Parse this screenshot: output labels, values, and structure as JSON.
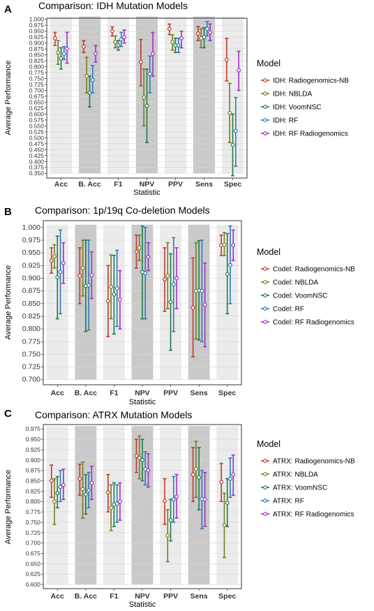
{
  "figure": {
    "panels": [
      "A",
      "B",
      "C"
    ]
  },
  "chart_data": [
    {
      "type": "errorbar",
      "panel_label": "A",
      "title": "Comparison: IDH Mutation Models",
      "xlabel": "Statistic",
      "ylabel": "Average Performance",
      "categories": [
        "Acc",
        "B. Acc",
        "F1",
        "NPV",
        "PPV",
        "Sens",
        "Spec"
      ],
      "shaded_dark": [
        "B. Acc",
        "NPV",
        "Sens"
      ],
      "ylim": [
        0.33,
        1.005
      ],
      "yticks": [
        0.35,
        0.375,
        0.4,
        0.425,
        0.45,
        0.475,
        0.5,
        0.525,
        0.55,
        0.575,
        0.6,
        0.625,
        0.65,
        0.675,
        0.7,
        0.725,
        0.75,
        0.775,
        0.8,
        0.825,
        0.85,
        0.875,
        0.9,
        0.925,
        0.95,
        0.975,
        1.0
      ],
      "ytick_labels": [
        "0.350",
        "0.375",
        "0.400",
        "0.425",
        "0.450",
        "0.475",
        "0.500",
        "0.525",
        "0.550",
        "0.575",
        "0.600",
        "0.625",
        "0.650",
        "0.675",
        "0.700",
        "0.725",
        "0.750",
        "0.775",
        "0.800",
        "0.825",
        "0.850",
        "0.875",
        "0.900",
        "0.925",
        "0.950",
        "0.975",
        "1.000"
      ],
      "legend_title": "Model",
      "series": [
        {
          "name": "IDH: Radiogenomics-NB",
          "color": "#c0392b",
          "mean": [
            0.92,
            0.885,
            0.95,
            0.82,
            0.96,
            0.94,
            0.83
          ],
          "low": [
            0.89,
            0.86,
            0.93,
            0.72,
            0.935,
            0.91,
            0.74
          ],
          "high": [
            0.945,
            0.91,
            0.968,
            0.915,
            0.98,
            0.97,
            0.92
          ]
        },
        {
          "name": "IDH: NBLDA",
          "color": "#7a7a1f",
          "mean": [
            0.86,
            0.76,
            0.905,
            0.67,
            0.905,
            0.92,
            0.605
          ],
          "low": [
            0.81,
            0.69,
            0.88,
            0.55,
            0.87,
            0.88,
            0.48
          ],
          "high": [
            0.91,
            0.84,
            0.93,
            0.79,
            0.935,
            0.96,
            0.73
          ]
        },
        {
          "name": "IDH: VoomNSC",
          "color": "#1e7a46",
          "mean": [
            0.835,
            0.69,
            0.89,
            0.635,
            0.89,
            0.925,
            0.47
          ],
          "low": [
            0.79,
            0.63,
            0.87,
            0.48,
            0.86,
            0.88,
            0.34
          ],
          "high": [
            0.88,
            0.76,
            0.91,
            0.79,
            0.92,
            0.965,
            0.6
          ]
        },
        {
          "name": "IDH: RF",
          "color": "#2b7bb9",
          "mean": [
            0.855,
            0.745,
            0.915,
            0.77,
            0.89,
            0.96,
            0.53
          ],
          "low": [
            0.83,
            0.69,
            0.885,
            0.69,
            0.86,
            0.93,
            0.38
          ],
          "high": [
            0.885,
            0.805,
            0.945,
            0.845,
            0.92,
            0.99,
            0.67
          ]
        },
        {
          "name": "IDH: RF Radiogenomics",
          "color": "#a12fc4",
          "mean": [
            0.875,
            0.855,
            0.925,
            0.855,
            0.92,
            0.945,
            0.785
          ],
          "low": [
            0.815,
            0.82,
            0.9,
            0.76,
            0.88,
            0.91,
            0.7
          ],
          "high": [
            0.945,
            0.89,
            0.955,
            0.945,
            0.95,
            0.98,
            0.865
          ]
        }
      ]
    },
    {
      "type": "errorbar",
      "panel_label": "B",
      "title": "Comparison: 1p/19q Co-deletion Models",
      "xlabel": "Statistic",
      "ylabel": "Average Performance",
      "categories": [
        "Acc",
        "B. Acc",
        "F1",
        "NPV",
        "PPV",
        "Sens",
        "Spec"
      ],
      "shaded_dark": [
        "B. Acc",
        "NPV",
        "Sens"
      ],
      "ylim": [
        0.69,
        1.0135
      ],
      "yticks": [
        0.7,
        0.725,
        0.75,
        0.775,
        0.8,
        0.825,
        0.85,
        0.875,
        0.9,
        0.925,
        0.95,
        0.975,
        1.0
      ],
      "ytick_labels": [
        "0.700",
        "0.725",
        "0.750",
        "0.775",
        "0.800",
        "0.825",
        "0.850",
        "0.875",
        "0.900",
        "0.925",
        "0.950",
        "0.975",
        "1.000"
      ],
      "legend_title": "Model",
      "series": [
        {
          "name": "Codel: Radiogenomics-NB",
          "color": "#c0392b",
          "mean": [
            0.935,
            0.905,
            0.855,
            0.952,
            0.898,
            0.842,
            0.965
          ],
          "low": [
            0.91,
            0.85,
            0.785,
            0.92,
            0.835,
            0.745,
            0.945
          ],
          "high": [
            0.96,
            0.96,
            0.925,
            0.985,
            0.96,
            0.94,
            0.985
          ]
        },
        {
          "name": "Codel: NBLDA",
          "color": "#7a7a1f",
          "mean": [
            0.943,
            0.92,
            0.883,
            0.96,
            0.905,
            0.875,
            0.966
          ],
          "low": [
            0.92,
            0.865,
            0.82,
            0.935,
            0.84,
            0.78,
            0.945
          ],
          "high": [
            0.966,
            0.975,
            0.946,
            0.985,
            0.97,
            0.97,
            0.99
          ]
        },
        {
          "name": "Codel: VoomNSC",
          "color": "#1e7a46",
          "mean": [
            0.902,
            0.885,
            0.868,
            0.912,
            0.853,
            0.876,
            0.908
          ],
          "low": [
            0.82,
            0.795,
            0.79,
            0.82,
            0.758,
            0.778,
            0.83
          ],
          "high": [
            0.983,
            0.975,
            0.945,
            1.003,
            0.948,
            0.974,
            0.988
          ]
        },
        {
          "name": "Codel: RF",
          "color": "#2b7bb9",
          "mean": [
            0.912,
            0.886,
            0.88,
            0.91,
            0.888,
            0.875,
            0.926
          ],
          "low": [
            0.83,
            0.798,
            0.805,
            0.82,
            0.795,
            0.775,
            0.85
          ],
          "high": [
            0.995,
            0.975,
            0.955,
            1.0,
            0.98,
            0.975,
            1.003
          ]
        },
        {
          "name": "Codel: RF Radiogenomics",
          "color": "#a12fc4",
          "mean": [
            0.93,
            0.906,
            0.858,
            0.942,
            0.9,
            0.848,
            0.965
          ],
          "low": [
            0.89,
            0.86,
            0.8,
            0.915,
            0.84,
            0.765,
            0.935
          ],
          "high": [
            0.97,
            0.952,
            0.915,
            0.97,
            0.96,
            0.93,
            0.995
          ]
        }
      ]
    },
    {
      "type": "errorbar",
      "panel_label": "C",
      "title": "Comparison: ATRX Mutation Models",
      "xlabel": "Statistic",
      "ylabel": "Average Performance",
      "categories": [
        "Acc",
        "B. Acc",
        "F1",
        "NPV",
        "PPV",
        "Sens",
        "Spec"
      ],
      "shaded_dark": [
        "B. Acc",
        "NPV",
        "Sens"
      ],
      "ylim": [
        0.59,
        0.9855
      ],
      "yticks": [
        0.6,
        0.625,
        0.65,
        0.675,
        0.7,
        0.725,
        0.75,
        0.775,
        0.8,
        0.825,
        0.85,
        0.875,
        0.9,
        0.925,
        0.95,
        0.975
      ],
      "ytick_labels": [
        "0.600",
        "0.625",
        "0.650",
        "0.675",
        "0.700",
        "0.725",
        "0.750",
        "0.775",
        "0.800",
        "0.825",
        "0.850",
        "0.875",
        "0.900",
        "0.925",
        "0.950",
        "0.975"
      ],
      "legend_title": "Model",
      "series": [
        {
          "name": "ATRX: Radiogenomics-NB",
          "color": "#c0392b",
          "mean": [
            0.85,
            0.855,
            0.822,
            0.91,
            0.802,
            0.865,
            0.847
          ],
          "low": [
            0.81,
            0.815,
            0.775,
            0.87,
            0.745,
            0.8,
            0.8
          ],
          "high": [
            0.888,
            0.89,
            0.865,
            0.95,
            0.855,
            0.93,
            0.892
          ]
        },
        {
          "name": "ATRX: NBLDA",
          "color": "#7a7a1f",
          "mean": [
            0.8,
            0.83,
            0.785,
            0.905,
            0.718,
            0.878,
            0.743
          ],
          "low": [
            0.745,
            0.76,
            0.73,
            0.855,
            0.655,
            0.81,
            0.665
          ],
          "high": [
            0.855,
            0.895,
            0.84,
            0.958,
            0.78,
            0.945,
            0.82
          ]
        },
        {
          "name": "ATRX: VoomNSC",
          "color": "#1e7a46",
          "mean": [
            0.82,
            0.817,
            0.793,
            0.9,
            0.755,
            0.858,
            0.797
          ],
          "low": [
            0.785,
            0.77,
            0.74,
            0.85,
            0.705,
            0.78,
            0.74
          ],
          "high": [
            0.86,
            0.865,
            0.845,
            0.95,
            0.805,
            0.93,
            0.855
          ]
        },
        {
          "name": "ATRX: RF",
          "color": "#2b7bb9",
          "mean": [
            0.835,
            0.827,
            0.795,
            0.878,
            0.805,
            0.806,
            0.855
          ],
          "low": [
            0.8,
            0.785,
            0.75,
            0.84,
            0.75,
            0.735,
            0.81
          ],
          "high": [
            0.875,
            0.87,
            0.84,
            0.92,
            0.86,
            0.875,
            0.905
          ]
        },
        {
          "name": "ATRX: RF Radiogenomics",
          "color": "#a12fc4",
          "mean": [
            0.84,
            0.845,
            0.8,
            0.875,
            0.812,
            0.805,
            0.865
          ],
          "low": [
            0.805,
            0.805,
            0.755,
            0.835,
            0.76,
            0.74,
            0.815
          ],
          "high": [
            0.878,
            0.885,
            0.845,
            0.915,
            0.865,
            0.87,
            0.912
          ]
        }
      ]
    }
  ]
}
